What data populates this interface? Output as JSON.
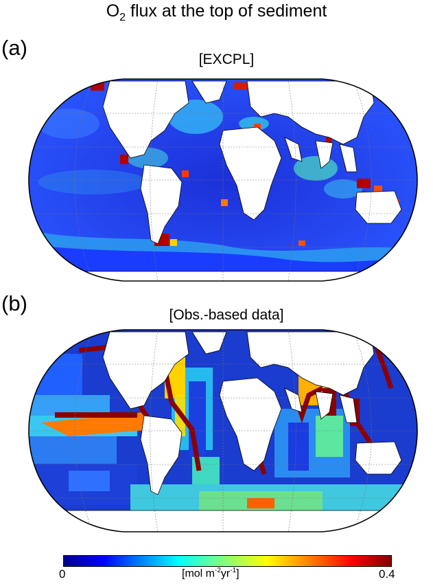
{
  "figure": {
    "title_prefix": "O",
    "title_sub": "2",
    "title_suffix": " flux at the top of sediment"
  },
  "panels": [
    {
      "label": "(a)",
      "title": "[EXCPL]"
    },
    {
      "label": "(b)",
      "title": "[Obs.-based data]"
    }
  ],
  "colorbar": {
    "min_label": "0",
    "max_label": "0.4",
    "unit_prefix": "[mol m",
    "unit_exp1": "-2",
    "unit_mid": "yr",
    "unit_exp2": "-1",
    "unit_suffix": "]",
    "colormap": "jet",
    "range": [
      0,
      0.4
    ]
  },
  "colors": {
    "ocean_low": "#1a3cff",
    "ocean_mid": "#2ec4f0",
    "ocean_high": "#ff5a00",
    "ocean_max": "#8b0000",
    "land": "#ffffff",
    "coast": "#000000",
    "grid": "#777777"
  }
}
